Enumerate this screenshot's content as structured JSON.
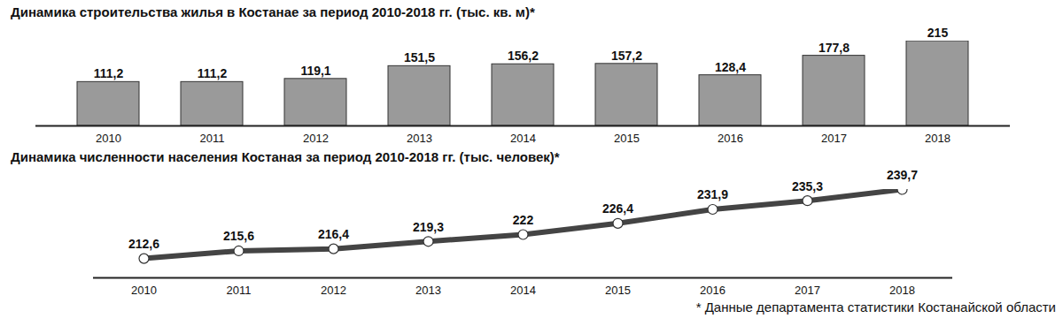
{
  "chart_data": [
    {
      "type": "bar",
      "title": "Динамика строительства жилья в Костанае  за период 2010-2018 гг. (тыс. кв. м)*",
      "categories": [
        "2010",
        "2011",
        "2012",
        "2013",
        "2014",
        "2015",
        "2016",
        "2017",
        "2018"
      ],
      "values": [
        111.2,
        111.2,
        119.1,
        151.5,
        156.2,
        157.2,
        128.4,
        177.8,
        215
      ],
      "value_labels": [
        "111,2",
        "111,2",
        "119,1",
        "151,5",
        "156,2",
        "157,2",
        "128,4",
        "177,8",
        "215"
      ],
      "color": "#9a9a9a",
      "ylim": [
        0,
        215
      ],
      "data_labels": true,
      "tick_labels": "x"
    },
    {
      "type": "line",
      "title": "Динамика численности населения Костаная за период 2010-2018 гг. (тыс. человек)*",
      "categories": [
        "2010",
        "2011",
        "2012",
        "2013",
        "2014",
        "2015",
        "2016",
        "2017",
        "2018"
      ],
      "values": [
        212.6,
        215.6,
        216.4,
        219.3,
        222,
        226.4,
        231.9,
        235.3,
        239.7
      ],
      "value_labels": [
        "212,6",
        "215,6",
        "216,4",
        "219,3",
        "222",
        "226,4",
        "231,9",
        "235,3",
        "239,7"
      ],
      "color": "#444444",
      "marker": "circle",
      "ylim": [
        205,
        239.7
      ],
      "data_labels": true,
      "tick_labels": "x",
      "caption": "* Данные департамента статистики Костанайской области"
    }
  ]
}
